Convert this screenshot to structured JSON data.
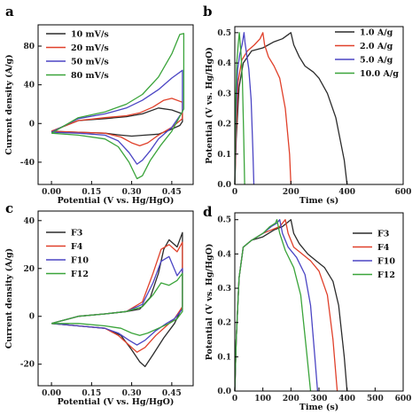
{
  "chart_data": [
    {
      "panel": "a",
      "type": "line",
      "xlabel": "Potential (V vs. Hg/HgO)",
      "ylabel": "Current density (A/g)",
      "xlim": [
        -0.05,
        0.53
      ],
      "ylim": [
        -63,
        102
      ],
      "xticks": [
        "0.00",
        "0.15",
        "0.30",
        "0.45"
      ],
      "xtick_values": [
        0.0,
        0.15,
        0.3,
        0.45
      ],
      "yticks": [
        "-40",
        "0",
        "40",
        "80"
      ],
      "ytick_values": [
        -40,
        0,
        40,
        80
      ],
      "legend_position": "top-right",
      "series": [
        {
          "name": "10 mV/s",
          "color": "#2b2b2b",
          "x": [
            0.0,
            0.1,
            0.2,
            0.26,
            0.3,
            0.35,
            0.4,
            0.44,
            0.48,
            0.49,
            0.49,
            0.45,
            0.4,
            0.34,
            0.28,
            0.2,
            0.1,
            0.0
          ],
          "y": [
            -8,
            -9,
            -10,
            -12,
            -13,
            -12,
            -11,
            -7,
            -2,
            2,
            10,
            14,
            16,
            10,
            7,
            5,
            3,
            -8
          ]
        },
        {
          "name": "20 mV/s",
          "color": "#e0402a",
          "x": [
            0.0,
            0.1,
            0.2,
            0.26,
            0.3,
            0.33,
            0.36,
            0.4,
            0.45,
            0.49,
            0.49,
            0.45,
            0.42,
            0.38,
            0.33,
            0.28,
            0.2,
            0.1,
            0.0
          ],
          "y": [
            -8,
            -9,
            -10,
            -14,
            -20,
            -23,
            -20,
            -12,
            -4,
            5,
            22,
            26,
            24,
            17,
            11,
            8,
            6,
            3,
            -8
          ]
        },
        {
          "name": "50 mV/s",
          "color": "#4b45c4",
          "x": [
            0.0,
            0.1,
            0.2,
            0.25,
            0.29,
            0.32,
            0.34,
            0.37,
            0.4,
            0.45,
            0.49,
            0.49,
            0.45,
            0.4,
            0.34,
            0.28,
            0.2,
            0.1,
            0.0
          ],
          "y": [
            -9,
            -10,
            -12,
            -18,
            -30,
            -42,
            -38,
            -28,
            -16,
            -4,
            12,
            55,
            47,
            35,
            24,
            16,
            10,
            5,
            -9
          ]
        },
        {
          "name": "80 mV/s",
          "color": "#3aa43a",
          "x": [
            0.0,
            0.1,
            0.2,
            0.25,
            0.29,
            0.32,
            0.34,
            0.37,
            0.41,
            0.45,
            0.495,
            0.495,
            0.48,
            0.45,
            0.4,
            0.34,
            0.28,
            0.2,
            0.1,
            0.0
          ],
          "y": [
            -10,
            -12,
            -16,
            -24,
            -40,
            -57,
            -54,
            -38,
            -22,
            -8,
            15,
            93,
            92,
            72,
            48,
            30,
            20,
            12,
            6,
            -10
          ]
        }
      ]
    },
    {
      "panel": "b",
      "type": "line",
      "xlabel": "Time (s)",
      "ylabel": "Potential (V vs. Hg/HgO)",
      "xlim": [
        0,
        600
      ],
      "ylim": [
        0,
        0.52
      ],
      "xticks": [
        "0",
        "200",
        "400",
        "600"
      ],
      "xtick_values": [
        0,
        200,
        400,
        600
      ],
      "yticks": [
        "0.0",
        "0.1",
        "0.2",
        "0.3",
        "0.4",
        "0.5"
      ],
      "ytick_values": [
        0,
        0.1,
        0.2,
        0.3,
        0.4,
        0.5
      ],
      "legend_position": "top-right",
      "series": [
        {
          "name": "1.0 A/g",
          "color": "#2b2b2b",
          "x": [
            0,
            5,
            15,
            30,
            60,
            100,
            140,
            170,
            200,
            210,
            230,
            250,
            280,
            300,
            330,
            360,
            390,
            400
          ],
          "y": [
            0,
            0.15,
            0.32,
            0.4,
            0.44,
            0.45,
            0.47,
            0.48,
            0.5,
            0.46,
            0.42,
            0.39,
            0.37,
            0.35,
            0.3,
            0.22,
            0.08,
            0
          ]
        },
        {
          "name": "2.0 A/g",
          "color": "#e0402a",
          "x": [
            0,
            5,
            12,
            25,
            45,
            70,
            90,
            100,
            106,
            120,
            140,
            160,
            180,
            195,
            200
          ],
          "y": [
            0,
            0.18,
            0.34,
            0.41,
            0.44,
            0.46,
            0.48,
            0.5,
            0.46,
            0.42,
            0.39,
            0.35,
            0.25,
            0.1,
            0
          ]
        },
        {
          "name": "5.0 A/g",
          "color": "#4b45c4",
          "x": [
            0,
            4,
            10,
            18,
            26,
            33,
            36,
            42,
            50,
            58,
            64,
            68
          ],
          "y": [
            0,
            0.22,
            0.38,
            0.43,
            0.46,
            0.5,
            0.47,
            0.43,
            0.38,
            0.28,
            0.12,
            0
          ]
        },
        {
          "name": "10.0 A/g",
          "color": "#3aa43a",
          "x": [
            0,
            3,
            7,
            12,
            16,
            18,
            22,
            27,
            32,
            35
          ],
          "y": [
            0,
            0.25,
            0.4,
            0.46,
            0.5,
            0.48,
            0.43,
            0.34,
            0.15,
            0
          ]
        }
      ]
    },
    {
      "panel": "c",
      "type": "line",
      "xlabel": "Potential (V vs. Hg/HgO)",
      "ylabel": "Current density (A/g)",
      "xlim": [
        -0.05,
        0.53
      ],
      "ylim": [
        -29,
        44
      ],
      "xticks": [
        "0.00",
        "0.15",
        "0.30",
        "0.45"
      ],
      "xtick_values": [
        0.0,
        0.15,
        0.3,
        0.45
      ],
      "yticks": [
        "-20",
        "0",
        "20",
        "40"
      ],
      "ytick_values": [
        -20,
        0,
        20,
        40
      ],
      "legend_position": "top-left",
      "series": [
        {
          "name": "F3",
          "color": "#2b2b2b",
          "x": [
            0.0,
            0.1,
            0.2,
            0.26,
            0.3,
            0.33,
            0.35,
            0.38,
            0.42,
            0.46,
            0.49,
            0.49,
            0.47,
            0.44,
            0.42,
            0.4,
            0.37,
            0.33,
            0.28,
            0.2,
            0.1,
            0.0
          ],
          "y": [
            -3,
            -4,
            -5,
            -8,
            -14,
            -19,
            -21,
            -16,
            -9,
            -3,
            4,
            35,
            29,
            32,
            28,
            18,
            8,
            3,
            2,
            1,
            0,
            -3
          ]
        },
        {
          "name": "F4",
          "color": "#e0402a",
          "x": [
            0.0,
            0.1,
            0.2,
            0.25,
            0.29,
            0.32,
            0.35,
            0.39,
            0.43,
            0.46,
            0.49,
            0.49,
            0.47,
            0.44,
            0.41,
            0.38,
            0.34,
            0.28,
            0.2,
            0.1,
            0.0
          ],
          "y": [
            -3,
            -4,
            -5,
            -8,
            -12,
            -15,
            -13,
            -8,
            -4,
            -1,
            4,
            31,
            27,
            30,
            28,
            18,
            6,
            2,
            1,
            0,
            -3
          ]
        },
        {
          "name": "F10",
          "color": "#4b45c4",
          "x": [
            0.0,
            0.1,
            0.2,
            0.25,
            0.29,
            0.32,
            0.35,
            0.39,
            0.43,
            0.46,
            0.49,
            0.49,
            0.47,
            0.44,
            0.41,
            0.38,
            0.34,
            0.28,
            0.2,
            0.1,
            0.0
          ],
          "y": [
            -3,
            -4,
            -5,
            -7,
            -10,
            -12,
            -10,
            -6,
            -3,
            -1,
            3,
            20,
            17,
            25,
            23,
            14,
            5,
            2,
            1,
            0,
            -3
          ]
        },
        {
          "name": "F12",
          "color": "#3aa43a",
          "x": [
            0.0,
            0.1,
            0.2,
            0.26,
            0.3,
            0.33,
            0.36,
            0.4,
            0.44,
            0.47,
            0.49,
            0.49,
            0.47,
            0.44,
            0.41,
            0.38,
            0.34,
            0.28,
            0.2,
            0.1,
            0.0
          ],
          "y": [
            -3,
            -3,
            -4,
            -5,
            -7,
            -8,
            -7,
            -5,
            -3,
            -1,
            2,
            18,
            15,
            13,
            14,
            9,
            4,
            2,
            1,
            0,
            -3
          ]
        }
      ]
    },
    {
      "panel": "d",
      "type": "line",
      "xlabel": "Time (s)",
      "ylabel": "Potential (V vs. Hg/HgO)",
      "xlim": [
        0,
        600
      ],
      "ylim": [
        0,
        0.52
      ],
      "xticks": [
        "0",
        "100",
        "200",
        "300",
        "400",
        "500",
        "600"
      ],
      "xtick_values": [
        0,
        100,
        200,
        300,
        400,
        500,
        600
      ],
      "yticks": [
        "0.0",
        "0.1",
        "0.2",
        "0.3",
        "0.4",
        "0.5"
      ],
      "ytick_values": [
        0,
        0.1,
        0.2,
        0.3,
        0.4,
        0.5
      ],
      "legend_position": "top-right",
      "series": [
        {
          "name": "F3",
          "color": "#2b2b2b",
          "x": [
            0,
            5,
            15,
            30,
            60,
            100,
            140,
            170,
            200,
            210,
            230,
            260,
            290,
            320,
            350,
            370,
            390,
            400
          ],
          "y": [
            0,
            0.15,
            0.33,
            0.42,
            0.44,
            0.45,
            0.47,
            0.48,
            0.5,
            0.46,
            0.43,
            0.4,
            0.38,
            0.36,
            0.32,
            0.25,
            0.1,
            0
          ]
        },
        {
          "name": "F4",
          "color": "#e0402a",
          "x": [
            0,
            5,
            15,
            30,
            60,
            100,
            130,
            160,
            180,
            190,
            210,
            240,
            270,
            300,
            330,
            350,
            365
          ],
          "y": [
            0,
            0.15,
            0.33,
            0.42,
            0.44,
            0.46,
            0.47,
            0.48,
            0.5,
            0.46,
            0.42,
            0.4,
            0.38,
            0.35,
            0.28,
            0.15,
            0
          ]
        },
        {
          "name": "F10",
          "color": "#4b45c4",
          "x": [
            0,
            5,
            15,
            30,
            60,
            100,
            130,
            150,
            160,
            170,
            190,
            220,
            250,
            270,
            285,
            295
          ],
          "y": [
            0,
            0.15,
            0.33,
            0.42,
            0.44,
            0.46,
            0.48,
            0.49,
            0.5,
            0.46,
            0.42,
            0.39,
            0.34,
            0.25,
            0.1,
            0
          ]
        },
        {
          "name": "F12",
          "color": "#3aa43a",
          "x": [
            0,
            5,
            15,
            30,
            60,
            100,
            125,
            145,
            150,
            160,
            180,
            210,
            235,
            255,
            270
          ],
          "y": [
            0,
            0.15,
            0.33,
            0.42,
            0.44,
            0.46,
            0.48,
            0.49,
            0.5,
            0.46,
            0.41,
            0.36,
            0.28,
            0.12,
            0
          ]
        }
      ]
    }
  ]
}
